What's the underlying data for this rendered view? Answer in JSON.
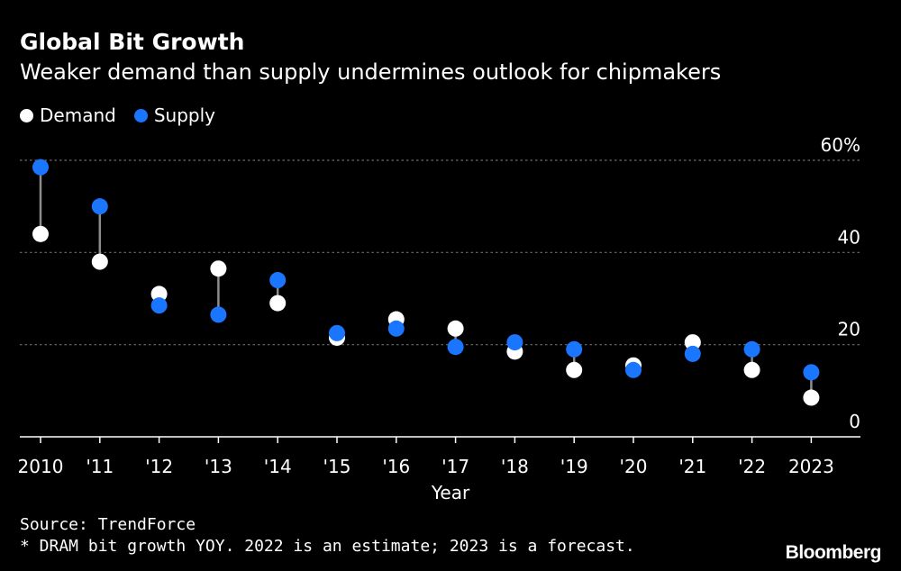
{
  "header": {
    "title": "Global Bit Growth",
    "subtitle": "Weaker demand than supply undermines outlook for chipmakers"
  },
  "legend": {
    "demand_label": "Demand",
    "supply_label": "Supply"
  },
  "colors": {
    "background": "#000000",
    "demand": "#ffffff",
    "supply": "#1a75ff",
    "stem": "#8c8c8c",
    "grid": "#6e6e6e",
    "axis": "#ffffff"
  },
  "footer": {
    "source": "Source: TrendForce",
    "note": "* DRAM bit growth YOY. 2022 is an estimate; 2023 is a forecast.",
    "brand": "Bloomberg"
  },
  "chart_data": {
    "type": "scatter",
    "title": "Global Bit Growth",
    "subtitle": "Weaker demand than supply undermines outlook for chipmakers",
    "xlabel": "Year",
    "ylabel": "",
    "ylim": [
      0,
      60
    ],
    "y_ticks": [
      0,
      20,
      40,
      60
    ],
    "y_tick_labels": [
      "0",
      "20",
      "40",
      "60%"
    ],
    "y_axis_side": "right",
    "grid": true,
    "legend_position": "top-left",
    "categories": [
      "2010",
      "'11",
      "'12",
      "'13",
      "'14",
      "'15",
      "'16",
      "'17",
      "'18",
      "'19",
      "'20",
      "'21",
      "'22",
      "2023"
    ],
    "series": [
      {
        "name": "Demand",
        "values": [
          44,
          38,
          31,
          36.5,
          29,
          21.5,
          25.5,
          23.5,
          18.5,
          14.5,
          15.5,
          20.5,
          14.5,
          8.5
        ]
      },
      {
        "name": "Supply",
        "values": [
          58.5,
          50,
          28.5,
          26.5,
          34,
          22.5,
          23.5,
          19.5,
          20.5,
          19,
          14.5,
          18,
          19,
          14
        ]
      }
    ]
  }
}
